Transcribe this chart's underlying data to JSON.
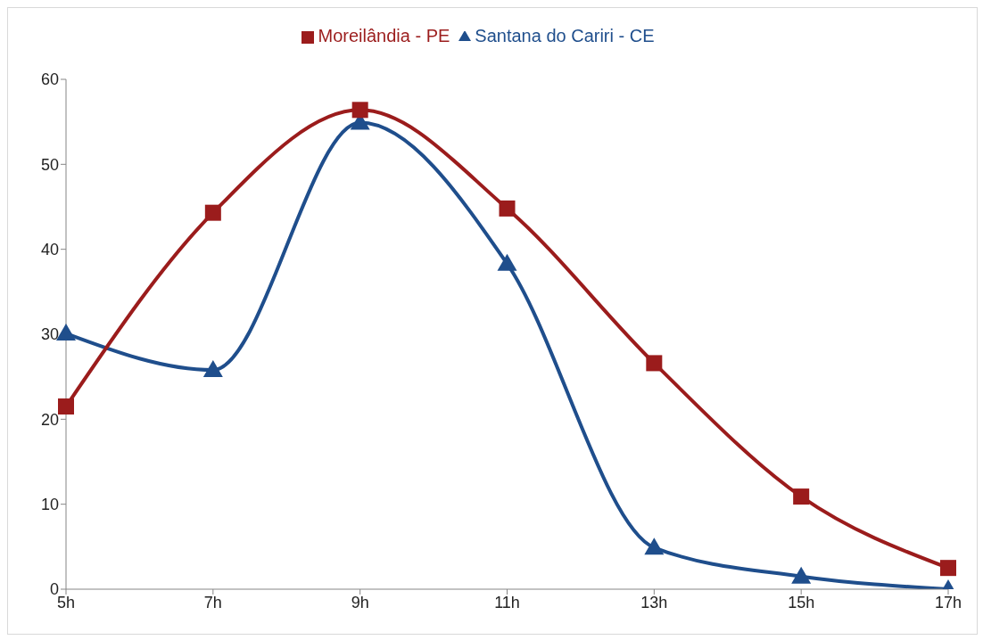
{
  "chart_data": {
    "type": "line",
    "categories": [
      "5h",
      "7h",
      "9h",
      "11h",
      "13h",
      "15h",
      "17h"
    ],
    "series": [
      {
        "name": "Santana do Cariri - CE",
        "color": "#1f4e8c",
        "marker": "triangle",
        "values": [
          30.1,
          25.8,
          54.9,
          38.3,
          4.9,
          1.5,
          0
        ]
      },
      {
        "name": "Moreilândia - PE",
        "color": "#9b1c1c",
        "marker": "square",
        "values": [
          21.5,
          44.3,
          56.4,
          44.8,
          26.6,
          10.9,
          2.5
        ]
      }
    ],
    "ylim": [
      0,
      60
    ],
    "yticks": [
      0,
      10,
      20,
      30,
      40,
      50,
      60
    ],
    "grid": false,
    "legend": "top"
  }
}
